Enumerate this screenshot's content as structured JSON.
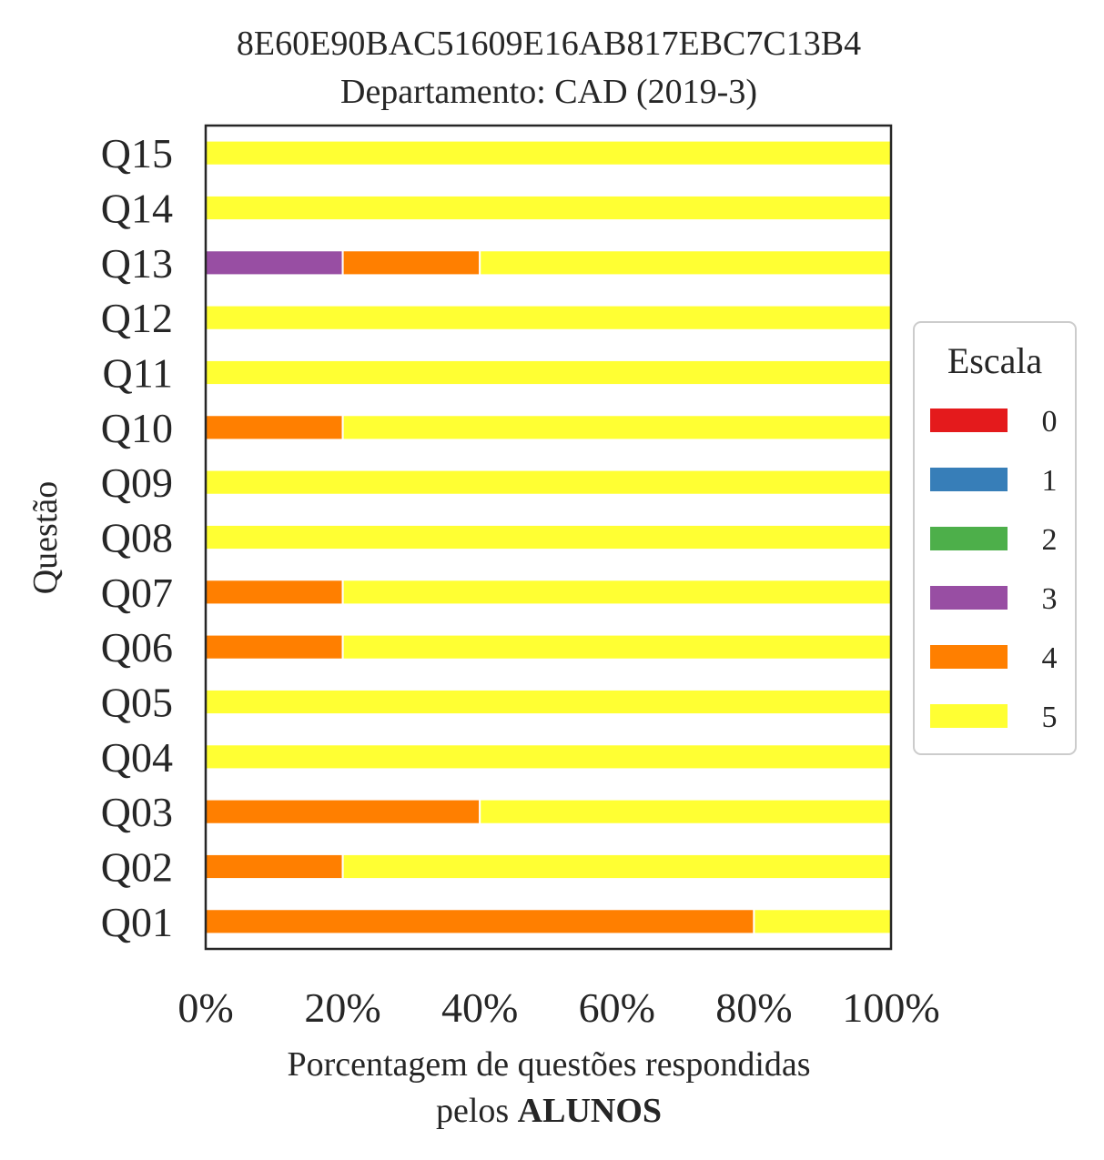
{
  "chart_data": {
    "type": "bar",
    "orientation": "horizontal",
    "stacked": true,
    "title": "8E60E90BAC51609E16AB817EBC7C13B4",
    "subtitle": "Departamento: CAD (2019-3)",
    "ylabel": "Questão",
    "xlabel_line1": "Porcentagem de questões respondidas",
    "xlabel_line2_prefix": "pelos ",
    "xlabel_line2_bold": "ALUNOS",
    "xlim": [
      0,
      100
    ],
    "xticks": [
      "0%",
      "20%",
      "40%",
      "60%",
      "80%",
      "100%"
    ],
    "categories": [
      "Q01",
      "Q02",
      "Q03",
      "Q04",
      "Q05",
      "Q06",
      "Q07",
      "Q08",
      "Q09",
      "Q10",
      "Q11",
      "Q12",
      "Q13",
      "Q14",
      "Q15"
    ],
    "series": [
      {
        "name": "0",
        "color": "#e41a1c",
        "values": [
          0,
          0,
          0,
          0,
          0,
          0,
          0,
          0,
          0,
          0,
          0,
          0,
          0,
          0,
          0
        ]
      },
      {
        "name": "1",
        "color": "#377eb8",
        "values": [
          0,
          0,
          0,
          0,
          0,
          0,
          0,
          0,
          0,
          0,
          0,
          0,
          0,
          0,
          0
        ]
      },
      {
        "name": "2",
        "color": "#4daf4a",
        "values": [
          0,
          0,
          0,
          0,
          0,
          0,
          0,
          0,
          0,
          0,
          0,
          0,
          0,
          0,
          0
        ]
      },
      {
        "name": "3",
        "color": "#984ea3",
        "values": [
          0,
          0,
          0,
          0,
          0,
          0,
          0,
          0,
          0,
          0,
          0,
          0,
          20,
          0,
          0
        ]
      },
      {
        "name": "4",
        "color": "#ff7f00",
        "values": [
          80,
          20,
          40,
          0,
          0,
          20,
          20,
          0,
          0,
          20,
          0,
          0,
          20,
          0,
          0
        ]
      },
      {
        "name": "5",
        "color": "#ffff33",
        "values": [
          20,
          80,
          60,
          100,
          100,
          80,
          80,
          100,
          100,
          80,
          100,
          100,
          60,
          100,
          100
        ]
      }
    ],
    "legend_title": "Escala",
    "legend_position": "center-right",
    "grid": false
  }
}
